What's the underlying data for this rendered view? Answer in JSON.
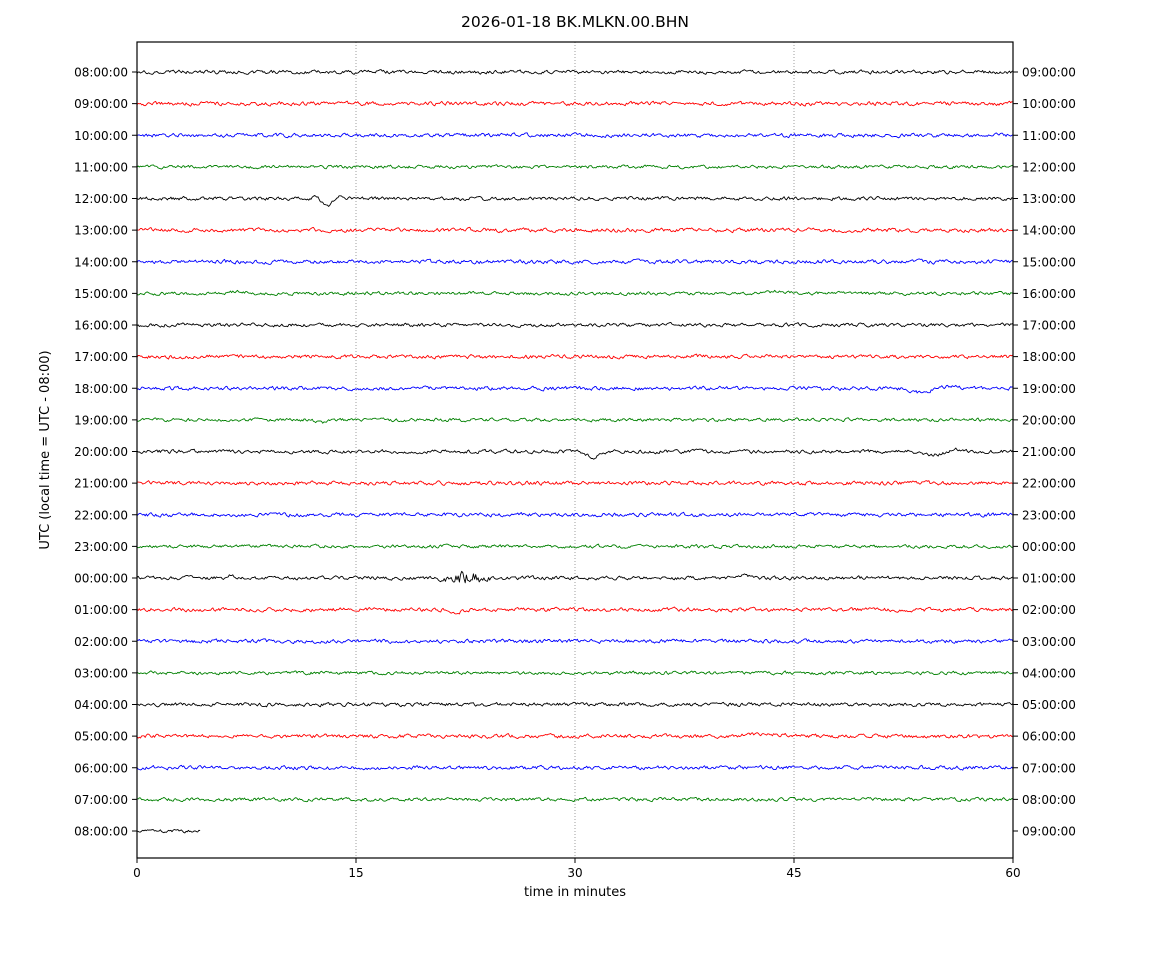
{
  "chart_data": {
    "type": "line",
    "subtype": "seismogram-helicorder",
    "title": "2026-01-18 BK.MLKN.00.BHN",
    "xlabel": "time in minutes",
    "ylabel": "UTC (local time = UTC - 08:00)",
    "x_range": [
      0,
      60
    ],
    "x_ticks": [
      "0",
      "15",
      "30",
      "45",
      "60"
    ],
    "x_tick_values": [
      0,
      15,
      30,
      45,
      60
    ],
    "x_gridlines": [
      15,
      30,
      45
    ],
    "row_duration_minutes": 60,
    "colors": {
      "black": "#000000",
      "red": "#ff0000",
      "blue": "#0000ff",
      "green": "#008000"
    },
    "rows": [
      {
        "left_label": "08:00:00",
        "right_label": "09:00:00",
        "color": "#000000",
        "amp": 1.5,
        "events": []
      },
      {
        "left_label": "09:00:00",
        "right_label": "10:00:00",
        "color": "#ff0000",
        "amp": 1.6,
        "events": []
      },
      {
        "left_label": "10:00:00",
        "right_label": "11:00:00",
        "color": "#0000ff",
        "amp": 1.6,
        "events": []
      },
      {
        "left_label": "11:00:00",
        "right_label": "12:00:00",
        "color": "#008000",
        "amp": 1.4,
        "events": []
      },
      {
        "left_label": "12:00:00",
        "right_label": "13:00:00",
        "color": "#000000",
        "amp": 1.5,
        "events": [
          {
            "t": 12.4,
            "a": -2,
            "w": 0.4
          },
          {
            "t": 13.0,
            "a": 9,
            "w": 0.45
          },
          {
            "t": 13.9,
            "a": -2.5,
            "w": 0.5
          }
        ]
      },
      {
        "left_label": "13:00:00",
        "right_label": "14:00:00",
        "color": "#ff0000",
        "amp": 1.6,
        "events": []
      },
      {
        "left_label": "14:00:00",
        "right_label": "15:00:00",
        "color": "#0000ff",
        "amp": 1.6,
        "events": []
      },
      {
        "left_label": "15:00:00",
        "right_label": "16:00:00",
        "color": "#008000",
        "amp": 1.4,
        "events": [
          {
            "t": 7.0,
            "a": -1.5,
            "w": 0.8
          },
          {
            "t": 44.0,
            "a": -2,
            "w": 1.2
          }
        ]
      },
      {
        "left_label": "16:00:00",
        "right_label": "17:00:00",
        "color": "#000000",
        "amp": 1.5,
        "events": []
      },
      {
        "left_label": "17:00:00",
        "right_label": "18:00:00",
        "color": "#ff0000",
        "amp": 1.6,
        "events": []
      },
      {
        "left_label": "18:00:00",
        "right_label": "19:00:00",
        "color": "#0000ff",
        "amp": 1.6,
        "events": [
          {
            "t": 53.6,
            "a": 4,
            "w": 0.9
          },
          {
            "t": 55.8,
            "a": -2,
            "w": 0.7
          }
        ]
      },
      {
        "left_label": "19:00:00",
        "right_label": "20:00:00",
        "color": "#008000",
        "amp": 1.4,
        "events": [
          {
            "t": 12.6,
            "a": 3.5,
            "w": 0.4
          }
        ]
      },
      {
        "left_label": "20:00:00",
        "right_label": "21:00:00",
        "color": "#000000",
        "amp": 1.5,
        "events": [
          {
            "t": 31.2,
            "a": 6,
            "w": 0.5
          },
          {
            "t": 54.5,
            "a": 3,
            "w": 1.0
          },
          {
            "t": 56.2,
            "a": -2,
            "w": 0.6
          }
        ]
      },
      {
        "left_label": "21:00:00",
        "right_label": "22:00:00",
        "color": "#ff0000",
        "amp": 1.6,
        "events": []
      },
      {
        "left_label": "22:00:00",
        "right_label": "23:00:00",
        "color": "#0000ff",
        "amp": 1.6,
        "events": []
      },
      {
        "left_label": "23:00:00",
        "right_label": "00:00:00",
        "color": "#008000",
        "amp": 1.4,
        "events": []
      },
      {
        "left_label": "00:00:00",
        "right_label": "01:00:00",
        "color": "#000000",
        "amp": 1.5,
        "events": [
          {
            "t": 6.5,
            "a": -3,
            "w": 0.35
          },
          {
            "t": 21.0,
            "a": 2,
            "w": 0.8
          },
          {
            "t": 22.6,
            "burst": 4,
            "w": 1.2
          },
          {
            "t": 41.5,
            "a": -2,
            "w": 0.8
          }
        ]
      },
      {
        "left_label": "01:00:00",
        "right_label": "02:00:00",
        "color": "#ff0000",
        "amp": 1.6,
        "events": [
          {
            "t": 21.9,
            "a": 3,
            "w": 0.45
          }
        ]
      },
      {
        "left_label": "02:00:00",
        "right_label": "03:00:00",
        "color": "#0000ff",
        "amp": 1.6,
        "events": []
      },
      {
        "left_label": "03:00:00",
        "right_label": "04:00:00",
        "color": "#008000",
        "amp": 1.4,
        "events": []
      },
      {
        "left_label": "04:00:00",
        "right_label": "05:00:00",
        "color": "#000000",
        "amp": 1.5,
        "events": []
      },
      {
        "left_label": "05:00:00",
        "right_label": "06:00:00",
        "color": "#ff0000",
        "amp": 1.6,
        "events": [
          {
            "t": 43.0,
            "a": -2,
            "w": 1.5
          }
        ]
      },
      {
        "left_label": "06:00:00",
        "right_label": "07:00:00",
        "color": "#0000ff",
        "amp": 1.6,
        "events": []
      },
      {
        "left_label": "07:00:00",
        "right_label": "08:00:00",
        "color": "#008000",
        "amp": 1.4,
        "events": []
      },
      {
        "left_label": "08:00:00",
        "right_label": "09:00:00",
        "color": "#000000",
        "amp": 1.3,
        "coverage": 0.073,
        "events": []
      }
    ]
  }
}
